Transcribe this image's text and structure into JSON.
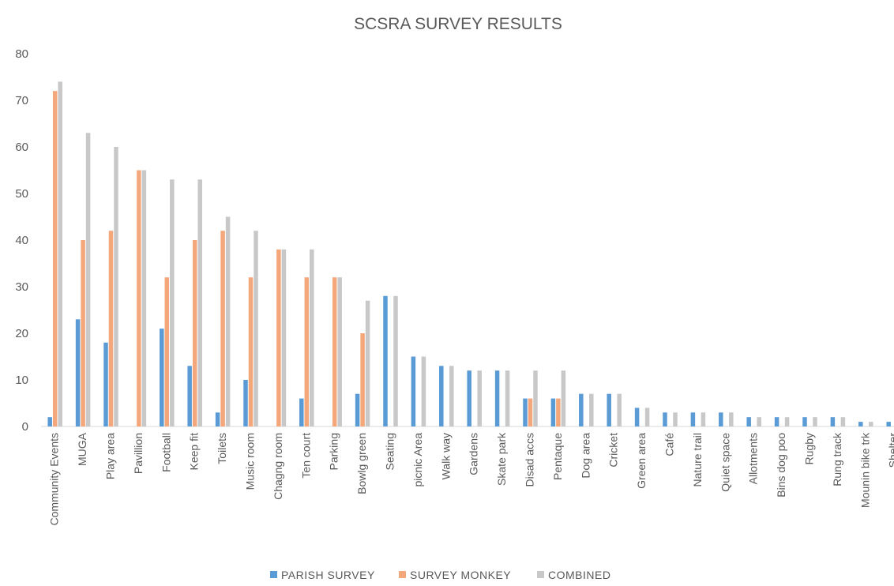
{
  "chart_data": {
    "type": "bar",
    "title": "SCSRA SURVEY RESULTS",
    "xlabel": "",
    "ylabel": "",
    "ylim": [
      0,
      80
    ],
    "yticks": [
      0,
      10,
      20,
      30,
      40,
      50,
      60,
      70,
      80
    ],
    "grid": false,
    "legend_position": "bottom",
    "categories": [
      "Community Events",
      "MUGA",
      "Play area",
      "Pavillion",
      "Football",
      "Keep fit",
      "Toilets",
      "Music room",
      "Chagng room",
      "Ten court",
      "Parking",
      "Bowlg green",
      "Seating",
      "picnic Area",
      "Walk way",
      "Gardens",
      "Skate park",
      "Disad accs",
      "Pentaque",
      "Dog area",
      "Cricket",
      "Green area",
      "Café",
      "Nature trail",
      "Quiet space",
      "Allotments",
      "Bins dog poo",
      "Rugby",
      "Rung track",
      "Mounin bike trk",
      "Shelter"
    ],
    "series": [
      {
        "name": "PARISH SURVEY",
        "color": "#5B9BD5",
        "values": [
          2,
          23,
          18,
          0,
          21,
          13,
          3,
          10,
          0,
          6,
          0,
          7,
          28,
          15,
          13,
          12,
          12,
          6,
          6,
          7,
          7,
          4,
          3,
          3,
          3,
          2,
          2,
          2,
          2,
          1,
          1
        ]
      },
      {
        "name": "SURVEY MONKEY",
        "color": "#F4A77A",
        "values": [
          72,
          40,
          42,
          55,
          32,
          40,
          42,
          32,
          38,
          32,
          32,
          20,
          0,
          0,
          0,
          0,
          0,
          6,
          6,
          0,
          0,
          0,
          0,
          0,
          0,
          0,
          0,
          0,
          0,
          0,
          0
        ]
      },
      {
        "name": "COMBINED",
        "color": "#C8C8C8",
        "values": [
          74,
          63,
          60,
          55,
          53,
          53,
          45,
          42,
          38,
          38,
          32,
          27,
          28,
          15,
          13,
          12,
          12,
          12,
          12,
          7,
          7,
          4,
          3,
          3,
          3,
          2,
          2,
          2,
          2,
          1,
          1
        ]
      }
    ]
  }
}
